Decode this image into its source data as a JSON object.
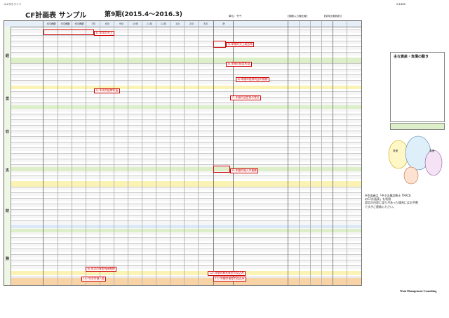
{
  "header": {
    "left_label": "ユメダカライフ",
    "right_code": "2/1606",
    "title": "CF計画表 サンプル",
    "period": "第9期(2015.4～2016.3)",
    "unit_text": "単位：千円",
    "block_actual_plan": "【実績入力値比較】",
    "block_prev_compare": "【前年比較検討】"
  },
  "months": [
    "4月実績",
    "5月実績",
    "6月実績",
    "7月",
    "8月",
    "9月",
    "10月",
    "11月",
    "12月",
    "1月",
    "2月",
    "3月",
    "計"
  ],
  "callouts": [
    "1/-年次の売上",
    "2/-年次の経常利益",
    "3/-年間の売上高比率",
    "5/-年間の経常利益",
    "6/-年間の経常利益の推移",
    "7/-年間の固定費の累計",
    "8/-年間の借入の推移",
    "9/-年次の資金残高推移",
    "10/-年次の借入金",
    "12/-年間の期末資金の見込み",
    "11/-年間の資金の見込み"
  ],
  "sections": [
    "経",
    "営",
    "収",
    "支",
    "財",
    "務"
  ],
  "side_panel": {
    "title": "主な資産・負債の動き",
    "legend_a": "資産",
    "legend_b": "負債"
  },
  "notes": [
    "※作成者は「中小企業診断士 TRACE",
    "のCF計画表」を利用",
    "設定の内容に誤りがあった場合にはお手数",
    "ですがご連絡ください。"
  ],
  "footer": "Wani Management Consulting",
  "colors": {
    "callout": "#cc0000",
    "band_green": "#dcefc9",
    "band_yellow": "#fbf3b3"
  }
}
